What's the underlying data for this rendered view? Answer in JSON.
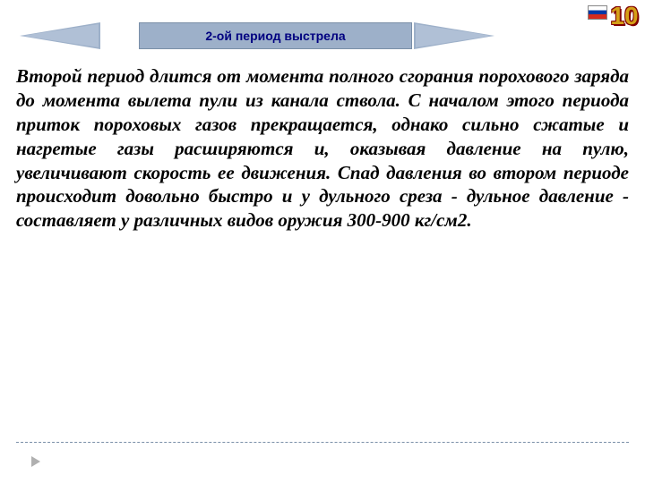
{
  "header": {
    "title": "2-ой период выстрела",
    "page_number": "10"
  },
  "content": {
    "emphasized_start": "Второй период",
    "body": " длится от момента полного сгорания порохового заряда до момента вылета пули из канала ствола. С началом этого периода приток пороховых газов прекращается, однако сильно сжатые и нагретые газы расширяются и, оказывая давление на пулю, увеличивают скорость ее движения. Спад давления во втором периоде происходит довольно быстро и у дульного среза - дульное давление - составляет у различных видов оружия 300-900 кг/см2."
  },
  "styling": {
    "background_color": "#ffffff",
    "arrow_color": "#9db0c9",
    "title_color": "#000080",
    "body_text_color": "#000000",
    "page_number_fill": "#d4a017",
    "page_number_outline": "#800000",
    "body_font_size": 21,
    "title_font_size": 14,
    "page_number_font_size": 28
  }
}
